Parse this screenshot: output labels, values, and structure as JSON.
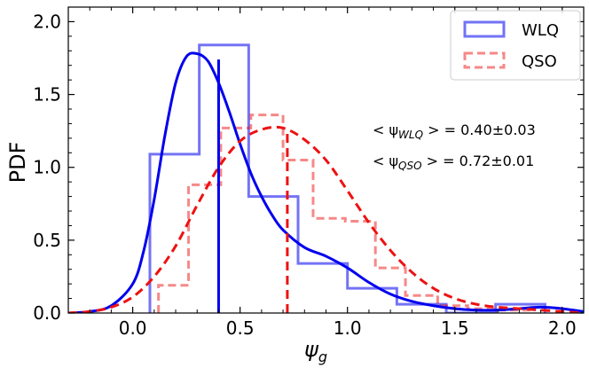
{
  "chart_data": {
    "type": "histogram",
    "xlabel": "ψ",
    "xlabel_sub": "g",
    "ylabel": "PDF",
    "xlim": [
      -0.3,
      2.1
    ],
    "ylim": [
      0,
      2.1
    ],
    "x_ticks": [
      0.0,
      0.5,
      1.0,
      1.5,
      2.0
    ],
    "x_tick_labels": [
      "0.0",
      "0.5",
      "1.0",
      "1.5",
      "2.0"
    ],
    "y_ticks": [
      0.0,
      0.5,
      1.0,
      1.5,
      2.0
    ],
    "y_tick_labels": [
      "0.0",
      "0.5",
      "1.0",
      "1.5",
      "2.0"
    ],
    "legend_position": "top-right",
    "series": [
      {
        "name": "WLQ",
        "color": "#0000ee",
        "hist_edges": [
          0.08,
          0.31,
          0.54,
          0.77,
          1.0,
          1.23,
          1.46,
          1.69,
          1.92
        ],
        "hist_values": [
          1.09,
          1.84,
          0.8,
          0.34,
          0.17,
          0.06,
          0.0,
          0.06
        ],
        "kde_x": [
          -0.3,
          -0.2,
          -0.1,
          0.0,
          0.05,
          0.1,
          0.15,
          0.2,
          0.25,
          0.3,
          0.35,
          0.4,
          0.45,
          0.5,
          0.55,
          0.6,
          0.65,
          0.7,
          0.8,
          0.9,
          1.0,
          1.1,
          1.2,
          1.3,
          1.4,
          1.5,
          1.6,
          1.7,
          1.8,
          1.9,
          2.0,
          2.1
        ],
        "kde_y": [
          0.0,
          0.01,
          0.05,
          0.2,
          0.42,
          0.78,
          1.22,
          1.58,
          1.76,
          1.78,
          1.73,
          1.58,
          1.38,
          1.16,
          0.96,
          0.8,
          0.67,
          0.57,
          0.45,
          0.39,
          0.31,
          0.21,
          0.13,
          0.08,
          0.05,
          0.03,
          0.02,
          0.02,
          0.03,
          0.04,
          0.03,
          0.01
        ],
        "mean": 0.4,
        "mean_line_height": 1.74
      },
      {
        "name": "QSO",
        "color": "#ee1111",
        "hist_edges": [
          0.12,
          0.26,
          0.41,
          0.55,
          0.7,
          0.84,
          0.99,
          1.13,
          1.27,
          1.42,
          1.56,
          1.71,
          1.85
        ],
        "hist_values": [
          0.19,
          0.88,
          1.27,
          1.36,
          1.05,
          0.65,
          0.63,
          0.31,
          0.12,
          0.05,
          0.03,
          0.02
        ],
        "kde_x": [
          -0.3,
          -0.2,
          -0.1,
          0.0,
          0.1,
          0.2,
          0.3,
          0.4,
          0.5,
          0.6,
          0.7,
          0.8,
          0.9,
          1.0,
          1.1,
          1.2,
          1.3,
          1.4,
          1.5,
          1.6,
          1.7,
          1.8,
          1.9,
          2.0,
          2.1
        ],
        "kde_y": [
          0.0,
          0.01,
          0.04,
          0.11,
          0.25,
          0.46,
          0.74,
          1.0,
          1.18,
          1.26,
          1.27,
          1.19,
          1.05,
          0.84,
          0.62,
          0.43,
          0.28,
          0.17,
          0.1,
          0.06,
          0.04,
          0.03,
          0.02,
          0.01,
          0.0
        ],
        "mean": 0.72,
        "mean_line_height": 1.25
      }
    ],
    "annotations": [
      {
        "prefix": "< ψ",
        "sub": "WLQ",
        "suffix": " >  = 0.40±0.03"
      },
      {
        "prefix": "< ψ",
        "sub": "QSO",
        "suffix": " >  = 0.72±0.01"
      }
    ]
  }
}
